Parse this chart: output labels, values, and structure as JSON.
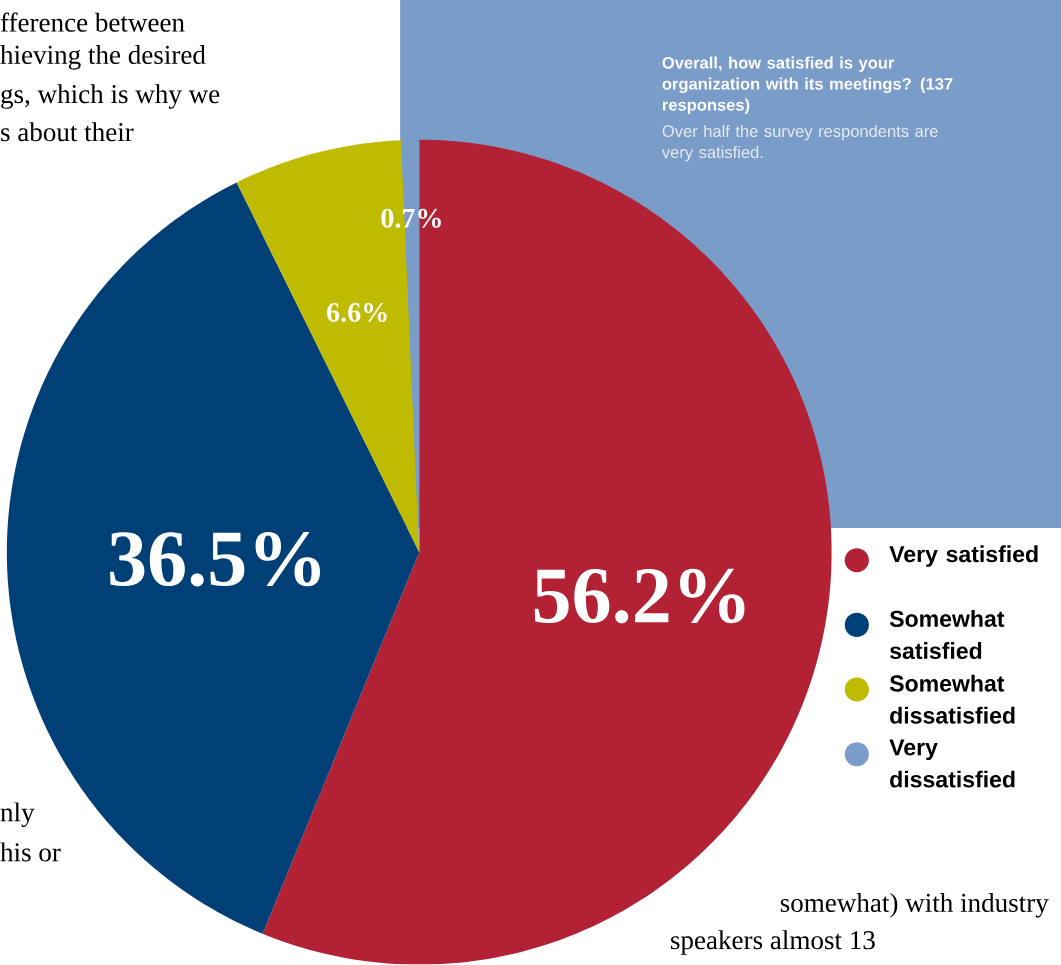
{
  "chart_data": {
    "type": "pie",
    "title": "Overall, how satisfied is your organization with its meetings? (137 responses)",
    "subtitle": "Over half the survey respondents are very satisfied.",
    "categories": [
      "Very satisfied",
      "Somewhat satisfied",
      "Somewhat dissatisfied",
      "Very dissatisfied"
    ],
    "values": [
      56.2,
      36.5,
      6.6,
      0.7
    ],
    "colors": [
      "#b22234",
      "#004077",
      "#bfbb00",
      "#7a9cc8"
    ],
    "value_labels": [
      "56.2%",
      "36.5%",
      "6.6%",
      "0.7%"
    ],
    "legend": "right",
    "annotations": [
      "fference between",
      "hieving the desired",
      "gs, which is why we",
      "s about their",
      "nly",
      "his or",
      "somewhat) with industry",
      "speakers almost 13"
    ]
  }
}
